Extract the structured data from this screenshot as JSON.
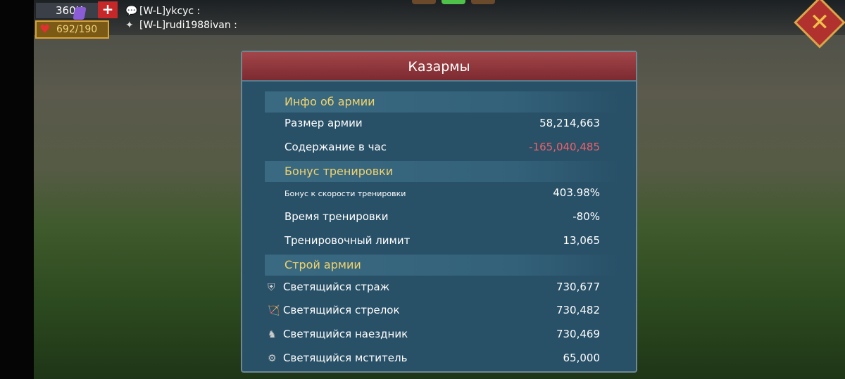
{
  "hud": {
    "gems": "360K",
    "add_label": "+",
    "stamina": "692/190"
  },
  "chat": [
    {
      "name": "[W-L]ykcyc :"
    },
    {
      "name": "[W-L]rudi1988ivan :"
    }
  ],
  "panel": {
    "title": "Казармы",
    "sections": [
      {
        "title": "Инфо об армии",
        "rows": [
          {
            "label": "Размер армии",
            "value": "58,214,663"
          },
          {
            "label": "Содержание в час",
            "value": "-165,040,485"
          }
        ]
      },
      {
        "title": "Бонус тренировки",
        "rows": [
          {
            "label": "Бонус к скорости тренировки",
            "value": "403.98%"
          },
          {
            "label": "Время тренировки",
            "value": "-80%"
          },
          {
            "label": "Тренировочный лимит",
            "value": "13,065"
          }
        ]
      },
      {
        "title": "Строй армии",
        "rows": [
          {
            "label": "Светящийся страж",
            "value": "730,677",
            "icon": "shield-icon"
          },
          {
            "label": "Светящийся стрелок",
            "value": "730,482",
            "icon": "bow-icon"
          },
          {
            "label": "Светящийся наездник",
            "value": "730,469",
            "icon": "horse-icon"
          },
          {
            "label": "Светящийся мститель",
            "value": "65,000",
            "icon": "siege-icon"
          }
        ]
      }
    ]
  },
  "colors": {
    "negative": "#f2606a",
    "section": "#f2d36b",
    "header": "#8e3a3f"
  }
}
